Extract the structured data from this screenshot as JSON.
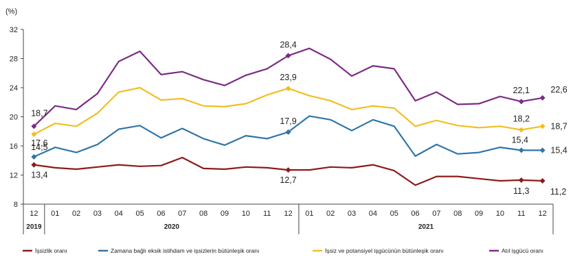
{
  "chart_data": {
    "type": "line",
    "ylabel": "(%)",
    "ylim": [
      8,
      32
    ],
    "yticks": [
      8,
      12,
      16,
      20,
      24,
      28,
      32
    ],
    "x": [
      "12",
      "01",
      "02",
      "03",
      "04",
      "05",
      "06",
      "07",
      "08",
      "09",
      "10",
      "11",
      "12",
      "01",
      "02",
      "03",
      "04",
      "05",
      "06",
      "07",
      "08",
      "09",
      "10",
      "11",
      "12"
    ],
    "years": [
      {
        "label": "2019",
        "from": 0,
        "to": 0
      },
      {
        "label": "2020",
        "from": 1,
        "to": 12
      },
      {
        "label": "2021",
        "from": 13,
        "to": 24
      }
    ],
    "grid": false,
    "legend_position": "bottom",
    "series": [
      {
        "name": "İşsizlik oranı",
        "color": "#8B1A1A",
        "values": [
          13.4,
          13.0,
          12.8,
          13.1,
          13.4,
          13.2,
          13.3,
          14.4,
          12.9,
          12.8,
          13.1,
          13.0,
          12.7,
          12.7,
          13.1,
          13.0,
          13.4,
          12.6,
          10.6,
          11.8,
          11.8,
          11.5,
          11.2,
          11.3,
          11.2
        ],
        "labels": [
          {
            "i": 0,
            "text": "13,4"
          },
          {
            "i": 12,
            "text": "12,7"
          },
          {
            "i": 23,
            "text": "11,3"
          },
          {
            "i": 24,
            "text": "11,2"
          }
        ]
      },
      {
        "name": "Zamana bağlı eksik istihdam ve işsizlerin bütünleşik oranı",
        "color": "#2E75A8",
        "values": [
          14.5,
          15.8,
          15.1,
          16.2,
          18.3,
          18.8,
          17.1,
          18.4,
          17.0,
          16.1,
          17.4,
          17.0,
          17.9,
          20.1,
          19.6,
          18.1,
          19.6,
          18.7,
          14.6,
          16.2,
          14.9,
          15.1,
          15.8,
          15.4,
          15.4
        ],
        "labels": [
          {
            "i": 0,
            "text": "14,5"
          },
          {
            "i": 12,
            "text": "17,9"
          },
          {
            "i": 23,
            "text": "15,4"
          },
          {
            "i": 24,
            "text": "15,4"
          }
        ]
      },
      {
        "name": "İşsiz ve potansiyel işgücünün bütünleşik oranı",
        "color": "#F2BE22",
        "values": [
          17.6,
          19.1,
          18.7,
          20.5,
          23.4,
          24.0,
          22.3,
          22.5,
          21.5,
          21.4,
          21.8,
          23.0,
          23.9,
          22.9,
          22.2,
          21.0,
          21.5,
          21.2,
          18.7,
          19.5,
          18.8,
          18.5,
          18.7,
          18.2,
          18.7
        ],
        "labels": [
          {
            "i": 0,
            "text": "17,6"
          },
          {
            "i": 12,
            "text": "23,9"
          },
          {
            "i": 23,
            "text": "18,2"
          },
          {
            "i": 24,
            "text": "18,7"
          }
        ]
      },
      {
        "name": "Atıl işgücü oranı",
        "color": "#7B2C83",
        "values": [
          18.7,
          21.5,
          21.0,
          23.2,
          27.6,
          29.0,
          25.8,
          26.2,
          25.1,
          24.3,
          25.7,
          26.6,
          28.4,
          29.4,
          27.9,
          25.6,
          27.0,
          26.6,
          22.2,
          23.4,
          21.7,
          21.8,
          22.8,
          22.1,
          22.6
        ],
        "labels": [
          {
            "i": 0,
            "text": "18,7"
          },
          {
            "i": 12,
            "text": "28,4"
          },
          {
            "i": 23,
            "text": "22,1"
          },
          {
            "i": 24,
            "text": "22,6"
          }
        ]
      }
    ]
  }
}
